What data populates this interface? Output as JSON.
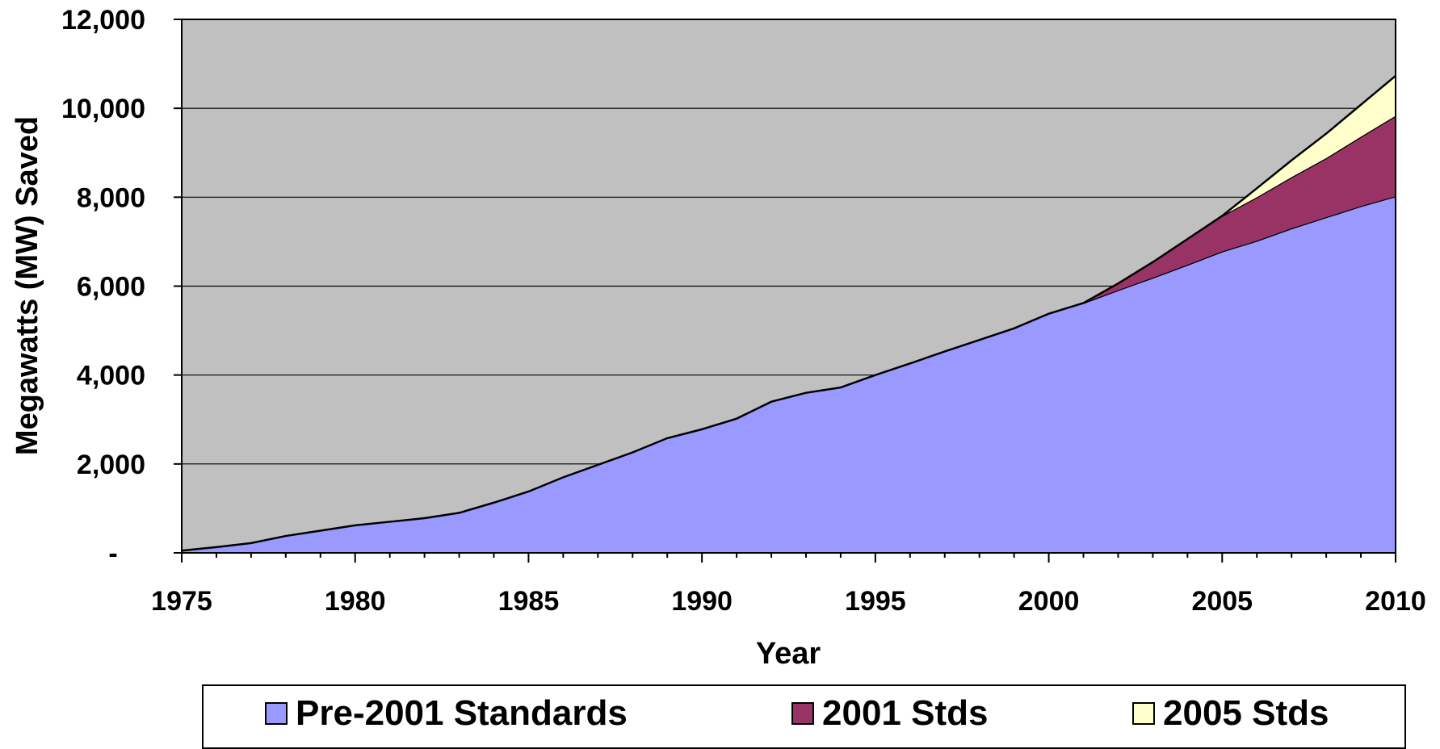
{
  "chart_data": {
    "type": "area",
    "stacked": true,
    "xlabel": "Year",
    "ylabel": "Megawatts (MW) Saved",
    "xlim": [
      1975,
      2010
    ],
    "ylim": [
      0,
      12000
    ],
    "x_ticks": [
      "1975",
      "1980",
      "1985",
      "1990",
      "1995",
      "2000",
      "2005",
      "2010"
    ],
    "y_ticks": [
      "-",
      "2,000",
      "4,000",
      "6,000",
      "8,000",
      "10,000",
      "12,000"
    ],
    "grid": true,
    "legend_position": "bottom",
    "colors": {
      "plot_background": "#c0c0c0",
      "pre_2001": "#9999ff",
      "stds_2001": "#993366",
      "stds_2005": "#ffffcc"
    },
    "x": [
      1975,
      1976,
      1977,
      1978,
      1979,
      1980,
      1981,
      1982,
      1983,
      1984,
      1985,
      1986,
      1987,
      1988,
      1989,
      1990,
      1991,
      1992,
      1993,
      1994,
      1995,
      1996,
      1997,
      1998,
      1999,
      2000,
      2001,
      2002,
      2003,
      2004,
      2005,
      2006,
      2007,
      2008,
      2009,
      2010
    ],
    "series": [
      {
        "name": "Pre-2001 Standards",
        "values": [
          50,
          130,
          220,
          380,
          500,
          620,
          700,
          780,
          900,
          1130,
          1380,
          1700,
          1980,
          2260,
          2580,
          2780,
          3020,
          3400,
          3600,
          3720,
          4000,
          4260,
          4530,
          4790,
          5050,
          5380,
          5620,
          5910,
          6190,
          6480,
          6780,
          7020,
          7300,
          7550,
          7800,
          8020
        ]
      },
      {
        "name": "2001 Stds",
        "values": [
          0,
          0,
          0,
          0,
          0,
          0,
          0,
          0,
          0,
          0,
          0,
          0,
          0,
          0,
          0,
          0,
          0,
          0,
          0,
          0,
          0,
          0,
          0,
          0,
          0,
          0,
          0,
          150,
          350,
          580,
          800,
          980,
          1150,
          1330,
          1560,
          1810
        ]
      },
      {
        "name": "2005 Stds",
        "values": [
          0,
          0,
          0,
          0,
          0,
          0,
          0,
          0,
          0,
          0,
          0,
          0,
          0,
          0,
          0,
          0,
          0,
          0,
          0,
          0,
          0,
          0,
          0,
          0,
          0,
          0,
          0,
          0,
          0,
          0,
          0,
          200,
          380,
          550,
          720,
          900
        ]
      }
    ]
  }
}
